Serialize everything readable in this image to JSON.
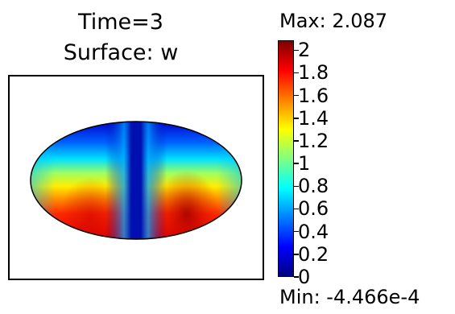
{
  "title": {
    "line1": "Time=3",
    "line2": "Surface: w"
  },
  "colorbar": {
    "max_label": "Max: 2.087",
    "min_label": "Min: -4.466e-4",
    "max_value": 2.087,
    "min_value": -0.0004466,
    "colormap": "jet",
    "ticks": [
      "0",
      "0.2",
      "0.4",
      "0.6",
      "0.8",
      "1",
      "1.2",
      "1.4",
      "1.6",
      "1.8",
      "2"
    ]
  },
  "surface": {
    "shape": "ellipse",
    "field": "w",
    "pattern": "low (blue) along the top edge and a vertical central band; high (red) in two lower lobes left and right of center"
  }
}
